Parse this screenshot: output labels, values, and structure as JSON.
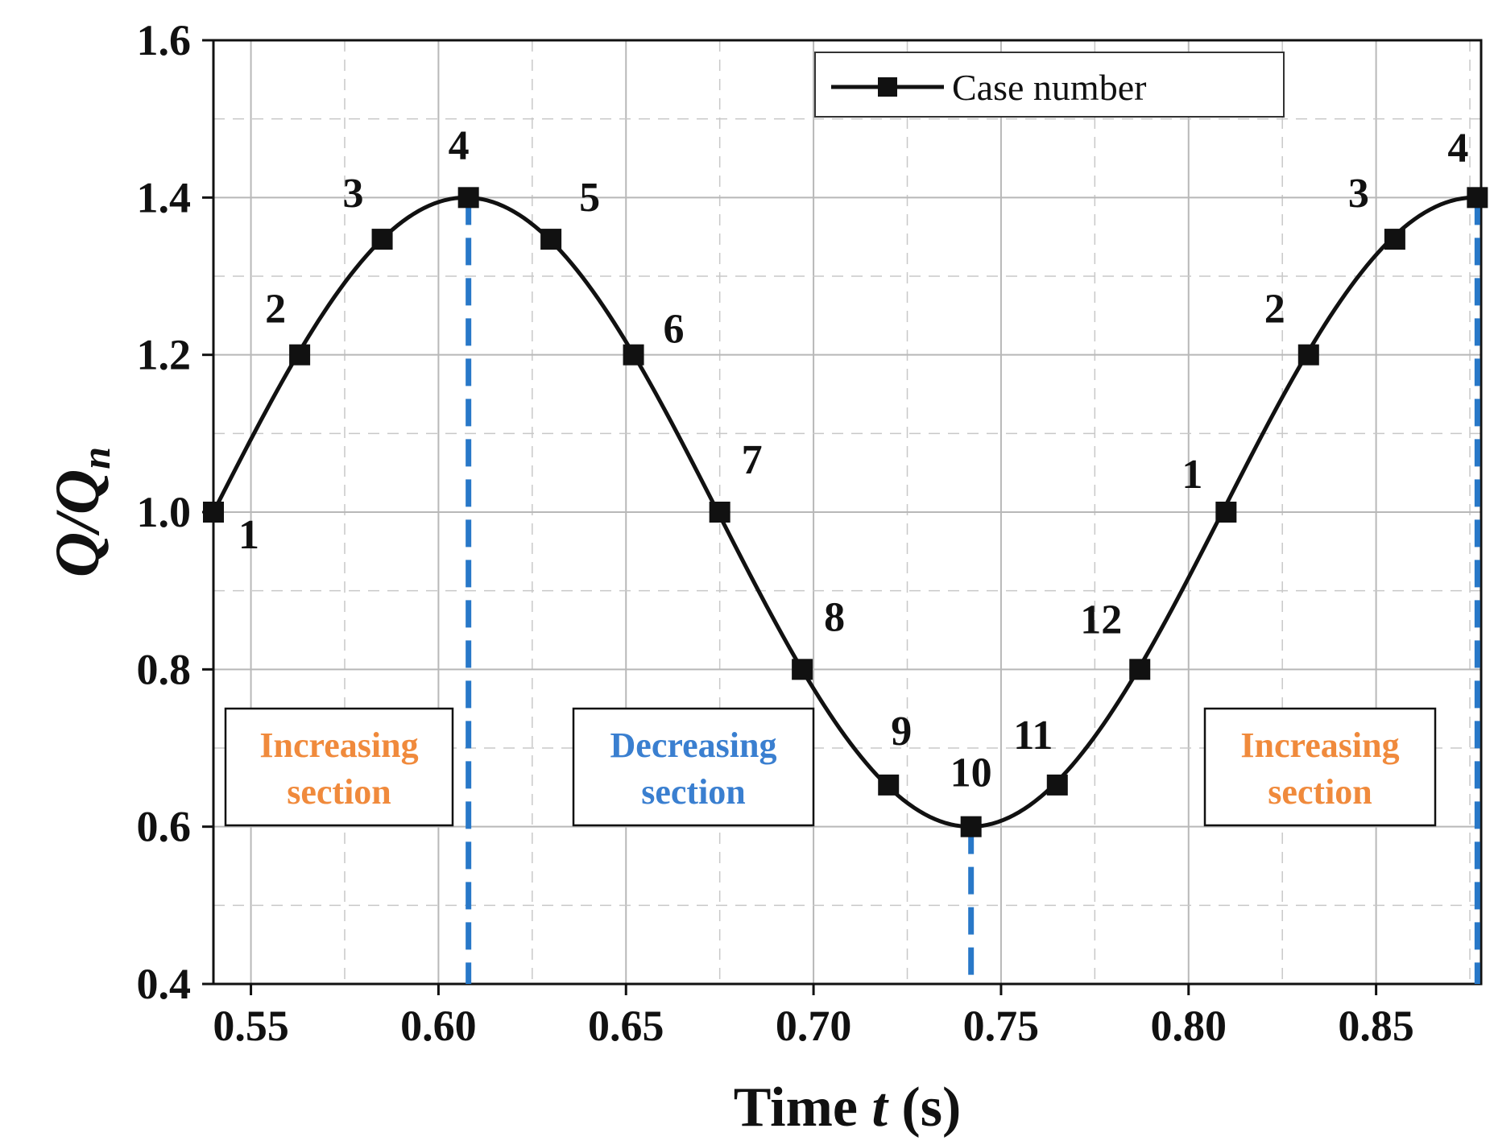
{
  "chart_data": {
    "type": "line",
    "title": "",
    "xlabel": {
      "prefix": "Time ",
      "var": "t",
      "suffix": " (s)"
    },
    "ylabel": {
      "base": "Q/Q",
      "sub": "n"
    },
    "xlim": [
      0.54,
      0.878
    ],
    "ylim": [
      0.4,
      1.6
    ],
    "xticks": [
      0.55,
      0.6,
      0.65,
      0.7,
      0.75,
      0.8,
      0.85
    ],
    "xtick_labels": [
      "0.55",
      "0.60",
      "0.65",
      "0.70",
      "0.75",
      "0.80",
      "0.85"
    ],
    "yticks": [
      0.4,
      0.6,
      0.8,
      1.0,
      1.2,
      1.4,
      1.6
    ],
    "ytick_labels": [
      "0.4",
      "0.6",
      "0.8",
      "1.0",
      "1.2",
      "1.4",
      "1.6"
    ],
    "grid": true,
    "series": [
      {
        "name": "Case number",
        "curve": {
          "mean": 1.0,
          "amplitude": 0.4,
          "period": 0.269,
          "phase_start": 0.54
        },
        "points": [
          {
            "x": 0.54,
            "y": 1.0,
            "label": "1"
          },
          {
            "x": 0.563,
            "y": 1.2,
            "label": "2"
          },
          {
            "x": 0.585,
            "y": 1.347,
            "label": "3"
          },
          {
            "x": 0.608,
            "y": 1.4,
            "label": "4"
          },
          {
            "x": 0.63,
            "y": 1.347,
            "label": "5"
          },
          {
            "x": 0.652,
            "y": 1.2,
            "label": "6"
          },
          {
            "x": 0.675,
            "y": 1.0,
            "label": "7"
          },
          {
            "x": 0.697,
            "y": 0.8,
            "label": "8"
          },
          {
            "x": 0.72,
            "y": 0.653,
            "label": "9"
          },
          {
            "x": 0.742,
            "y": 0.6,
            "label": "10"
          },
          {
            "x": 0.765,
            "y": 0.653,
            "label": "11"
          },
          {
            "x": 0.787,
            "y": 0.8,
            "label": "12"
          },
          {
            "x": 0.81,
            "y": 1.0,
            "label": "1"
          },
          {
            "x": 0.832,
            "y": 1.2,
            "label": "2"
          },
          {
            "x": 0.855,
            "y": 1.347,
            "label": "3"
          },
          {
            "x": 0.877,
            "y": 1.4,
            "label": "4"
          }
        ]
      }
    ],
    "vlines": [
      {
        "x": 0.608,
        "ymax": 1.4,
        "color": "#2878c8"
      },
      {
        "x": 0.742,
        "ymax": 0.6,
        "color": "#2878c8"
      },
      {
        "x": 0.877,
        "ymax": 1.4,
        "color": "#2878c8"
      }
    ],
    "sections": [
      {
        "line1": "Increasing",
        "line2": "section",
        "color": "#f08a3c"
      },
      {
        "line1": "Decreasing",
        "line2": "section",
        "color": "#3a7fd0"
      },
      {
        "line1": "Increasing",
        "line2": "section",
        "color": "#f08a3c"
      }
    ],
    "legend": {
      "position": "top-right",
      "entries": [
        "Case number"
      ]
    }
  }
}
